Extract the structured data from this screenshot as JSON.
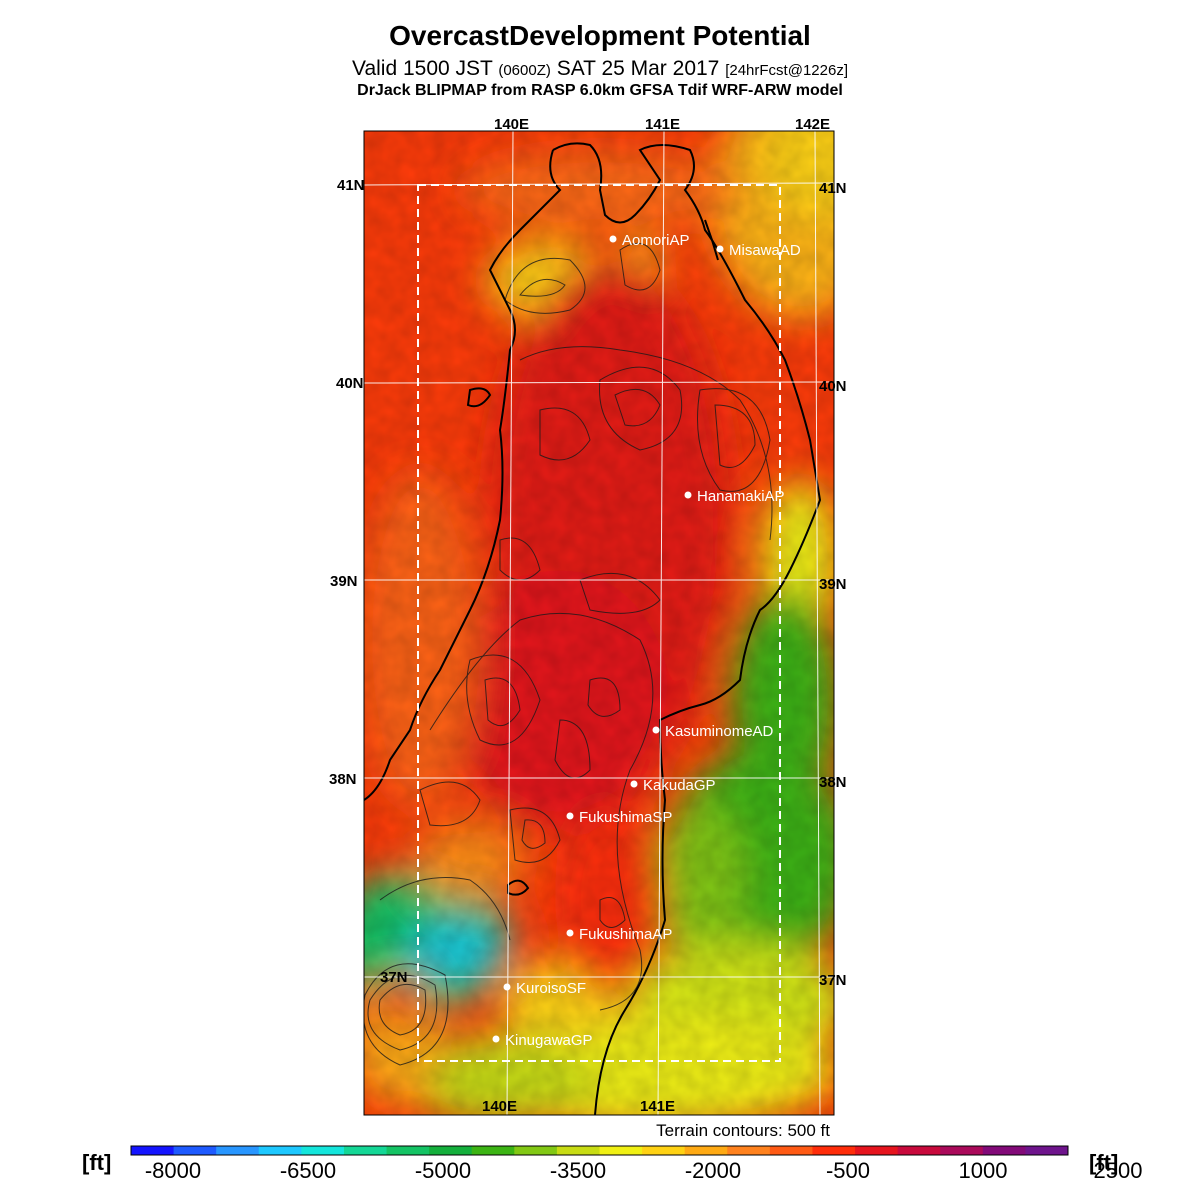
{
  "header": {
    "title": "OvercastDevelopment Potential",
    "subtitle_main": "Valid 1500 JST",
    "subtitle_zone": "(0600Z)",
    "subtitle_date": "SAT 25 Mar 2017",
    "subtitle_fcst": "[24hrFcst@1226z]",
    "model": "DrJack BLIPMAP from RASP 6.0km GFSA Tdif WRF-ARW model"
  },
  "axes": {
    "lon_labels": [
      "140E",
      "141E",
      "142E"
    ],
    "lat_labels": [
      "41N",
      "40N",
      "39N",
      "38N",
      "37N"
    ]
  },
  "sites": [
    {
      "name": "AomoriAP"
    },
    {
      "name": "MisawaAD"
    },
    {
      "name": "HanamakiAP"
    },
    {
      "name": "KasuminomeAD"
    },
    {
      "name": "KakudaGP"
    },
    {
      "name": "FukushimaSP"
    },
    {
      "name": "FukushimaAP"
    },
    {
      "name": "KuroisoSF"
    },
    {
      "name": "KinugawaGP"
    }
  ],
  "terrain_note": "Terrain contours: 500 ft",
  "colorbar": {
    "unit_left": "[ft]",
    "unit_right": "[ft]",
    "ticks": [
      "-8000",
      "-6500",
      "-5000",
      "-3500",
      "-2000",
      "-500",
      "1000",
      "2500"
    ],
    "colors": [
      "#1414ff",
      "#1e5aff",
      "#2896ff",
      "#1ec8ff",
      "#14e6dc",
      "#14d796",
      "#14c364",
      "#14af3c",
      "#3cb414",
      "#82c814",
      "#c8dc14",
      "#f0f014",
      "#ffd214",
      "#ffaa14",
      "#ff821e",
      "#ff5a14",
      "#ff2d0a",
      "#e6141e",
      "#c80a3c",
      "#aa0a5a",
      "#820a78",
      "#6e148c"
    ]
  }
}
